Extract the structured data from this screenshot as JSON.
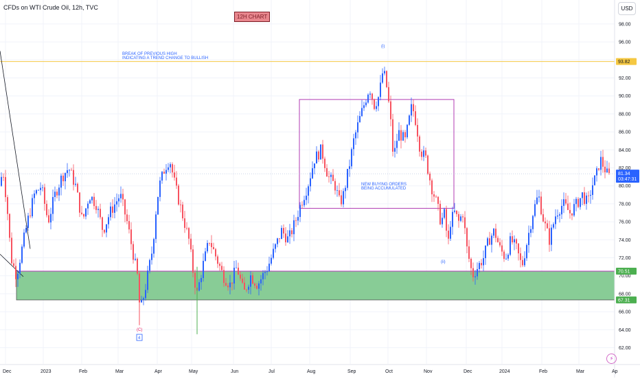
{
  "header": {
    "title": "CFDs on WTI Crude Oil, 12h, TVC",
    "chart_tag": "12H CHART",
    "currency": "USD"
  },
  "chart_data": {
    "type": "candlestick",
    "currency": "USD",
    "ylim": [
      60,
      100
    ],
    "yticks": [
      62,
      64,
      66,
      68,
      70,
      72,
      74,
      76,
      78,
      80,
      82,
      84,
      86,
      88,
      90,
      92,
      94,
      96,
      98
    ],
    "x_tick_labels": [
      "Dec",
      "2023",
      "Feb",
      "Mar",
      "Apr",
      "May",
      "Jun",
      "Jul",
      "Aug",
      "Sep",
      "Oct",
      "Nov",
      "Dec",
      "2024",
      "Feb",
      "Mar",
      "Ap"
    ],
    "price_path": [
      [
        0,
        80
      ],
      [
        4,
        82
      ],
      [
        10,
        78
      ],
      [
        16,
        72
      ],
      [
        24,
        70
      ],
      [
        32,
        73
      ],
      [
        40,
        76
      ],
      [
        50,
        79
      ],
      [
        60,
        80
      ],
      [
        70,
        76
      ],
      [
        80,
        79
      ],
      [
        90,
        81
      ],
      [
        100,
        82
      ],
      [
        110,
        80
      ],
      [
        120,
        76
      ],
      [
        130,
        79
      ],
      [
        140,
        78
      ],
      [
        150,
        75
      ],
      [
        160,
        77
      ],
      [
        175,
        79
      ],
      [
        185,
        76
      ],
      [
        195,
        72
      ],
      [
        200,
        70
      ],
      [
        204,
        66
      ],
      [
        210,
        68
      ],
      [
        215,
        70
      ],
      [
        222,
        73
      ],
      [
        228,
        78
      ],
      [
        232,
        80
      ],
      [
        240,
        82
      ],
      [
        247,
        83
      ],
      [
        255,
        80
      ],
      [
        265,
        77
      ],
      [
        275,
        74
      ],
      [
        282,
        70
      ],
      [
        287,
        68
      ],
      [
        295,
        71
      ],
      [
        305,
        74
      ],
      [
        315,
        72
      ],
      [
        325,
        70
      ],
      [
        335,
        69
      ],
      [
        345,
        71
      ],
      [
        355,
        68
      ],
      [
        365,
        70
      ],
      [
        375,
        69
      ],
      [
        390,
        71
      ],
      [
        400,
        73
      ],
      [
        410,
        75
      ],
      [
        420,
        74
      ],
      [
        430,
        76
      ],
      [
        438,
        78
      ],
      [
        448,
        80
      ],
      [
        458,
        83
      ],
      [
        468,
        84
      ],
      [
        478,
        81
      ],
      [
        488,
        80
      ],
      [
        495,
        78
      ],
      [
        500,
        79
      ],
      [
        508,
        82
      ],
      [
        515,
        85
      ],
      [
        522,
        87
      ],
      [
        530,
        89
      ],
      [
        538,
        91
      ],
      [
        545,
        89
      ],
      [
        552,
        90
      ],
      [
        558,
        93
      ],
      [
        563,
        91
      ],
      [
        568,
        88
      ],
      [
        573,
        83
      ],
      [
        580,
        86
      ],
      [
        590,
        85
      ],
      [
        600,
        89
      ],
      [
        606,
        87
      ],
      [
        612,
        84
      ],
      [
        620,
        83
      ],
      [
        628,
        80
      ],
      [
        636,
        78
      ],
      [
        642,
        76
      ],
      [
        648,
        77
      ],
      [
        652,
        73
      ],
      [
        656,
        76
      ],
      [
        662,
        77
      ],
      [
        668,
        76
      ],
      [
        674,
        77
      ],
      [
        680,
        73
      ],
      [
        688,
        70
      ],
      [
        696,
        71
      ],
      [
        704,
        72
      ],
      [
        712,
        74
      ],
      [
        720,
        75
      ],
      [
        728,
        73
      ],
      [
        736,
        72
      ],
      [
        744,
        74
      ],
      [
        752,
        73
      ],
      [
        760,
        71
      ],
      [
        768,
        74
      ],
      [
        776,
        77
      ],
      [
        784,
        79
      ],
      [
        792,
        76
      ],
      [
        800,
        74
      ],
      [
        810,
        77
      ],
      [
        820,
        78
      ],
      [
        830,
        77
      ],
      [
        840,
        78
      ],
      [
        848,
        79
      ],
      [
        856,
        78
      ],
      [
        862,
        80
      ],
      [
        868,
        81
      ],
      [
        874,
        83
      ],
      [
        880,
        82
      ],
      [
        886,
        81
      ],
      [
        890,
        81.34
      ]
    ],
    "horizontal_lines": [
      {
        "label": "93.82",
        "value": 93.82,
        "color": "#f5c842"
      },
      {
        "label": "81.34",
        "value": 81.34,
        "color": "#2962ff",
        "secondary": "03:47:31"
      }
    ],
    "zones": [
      {
        "name": "demand-zone",
        "top_value": 70.51,
        "bottom_value": 67.31,
        "fill": "#7bc68b",
        "border": "#b03ab3",
        "top_label": "70.51",
        "bottom_label": "67.31",
        "label_color": "#4caf50"
      }
    ],
    "annotations": [
      {
        "id": "break-text-1",
        "text": "BREAK OF PREVIOUS HIGH",
        "color": "#2962ff"
      },
      {
        "id": "break-text-2",
        "text": "INDICATING A TREND CHANGE TO BULLISH",
        "color": "#2962ff"
      },
      {
        "id": "buying-text-1",
        "text": "NEW BUYING ORDERS",
        "color": "#2962ff"
      },
      {
        "id": "buying-text-2",
        "text": "BEING ACCUMULATED",
        "color": "#2962ff"
      },
      {
        "id": "wave-i",
        "text": "(i)",
        "color": "#2962ff"
      },
      {
        "id": "wave-ii",
        "text": "(ii)",
        "color": "#2962ff"
      },
      {
        "id": "wave-c",
        "text": "(C)",
        "color": "#e91e63"
      },
      {
        "id": "wave-4",
        "text": "4",
        "color": "#2962ff"
      }
    ],
    "colors": {
      "up": "#2962ff",
      "down": "#f7525f",
      "grid_line": "#f0f3fa",
      "axis_text": "#131722",
      "box_border": "#b03ab3",
      "trend_line": "#131722"
    }
  }
}
